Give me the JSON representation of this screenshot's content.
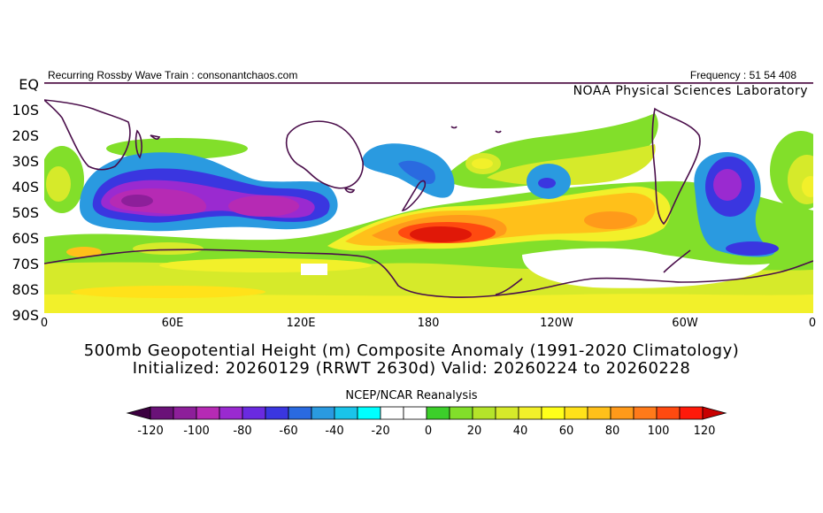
{
  "header": {
    "left_note": "Recurring Rossby Wave Train : consonantchaos.com",
    "right_note": "Frequency : 51 54 408",
    "lab_name": "NOAA Physical Sciences Laboratory"
  },
  "map": {
    "lat_labels": [
      "EQ",
      "10S",
      "20S",
      "30S",
      "40S",
      "50S",
      "60S",
      "70S",
      "80S",
      "90S"
    ],
    "lon_labels": [
      "0",
      "60E",
      "120E",
      "180",
      "120W",
      "60W",
      "0"
    ],
    "colors": {
      "frame": "#54164a",
      "coast": "#4b0f4b"
    }
  },
  "titles": {
    "line1": "500mb Geopotential Height (m) Composite Anomaly (1991-2020 Climatology)",
    "line2": "Initialized: 20260129 (RRWT 2630d) Valid: 20260224 to 20260228",
    "source": "NCEP/NCAR Reanalysis"
  },
  "colorbar": {
    "tick_labels": [
      "-120",
      "-100",
      "-80",
      "-60",
      "-40",
      "-20",
      "0",
      "20",
      "40",
      "60",
      "80",
      "100",
      "120"
    ],
    "colors": [
      "#3c0040",
      "#6a1278",
      "#8d1f9a",
      "#b62ab4",
      "#9a2ad0",
      "#6a2ae0",
      "#3a36e0",
      "#2a6ae0",
      "#2a9ae0",
      "#1ac4ea",
      "#00ffff",
      "#ffffff",
      "#ffffff",
      "#3ccf2a",
      "#82df2a",
      "#b4e42a",
      "#d6ea2a",
      "#f2f02a",
      "#ffff1a",
      "#ffe21a",
      "#ffc01a",
      "#ff9a1a",
      "#ff7a1a",
      "#ff4a10",
      "#ff1a0a",
      "#c80000"
    ]
  }
}
